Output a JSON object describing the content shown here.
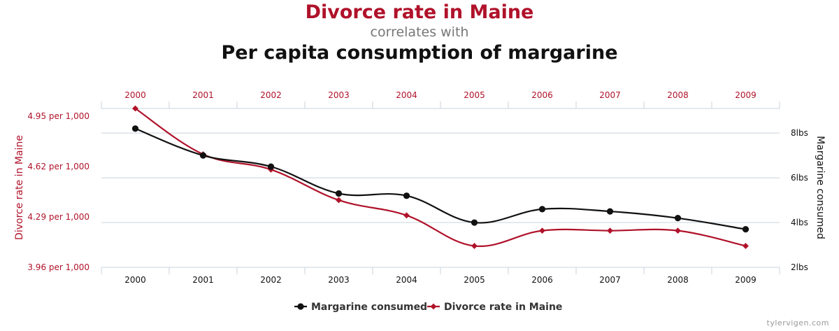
{
  "title": {
    "primary": "Divorce rate in Maine",
    "connector": "correlates with",
    "secondary": "Per capita consumption of margarine"
  },
  "colors": {
    "red": "#b0122a",
    "black": "#111111",
    "grid": "#c9d3dd",
    "connector_text": "#777777"
  },
  "chart_data": {
    "type": "line",
    "categories": [
      "2000",
      "2001",
      "2002",
      "2003",
      "2004",
      "2005",
      "2006",
      "2007",
      "2008",
      "2009"
    ],
    "series": [
      {
        "name": "Margarine consumed",
        "axis": "right",
        "color": "#111111",
        "marker": "circle",
        "values": [
          8.2,
          7.0,
          6.5,
          5.3,
          5.2,
          4.0,
          4.6,
          4.5,
          4.2,
          3.7
        ]
      },
      {
        "name": "Divorce rate in Maine",
        "axis": "left",
        "color": "#b0122a",
        "marker": "diamond",
        "values": [
          5.0,
          4.7,
          4.6,
          4.4,
          4.3,
          4.1,
          4.2,
          4.2,
          4.2,
          4.1
        ]
      }
    ],
    "left_axis": {
      "label": "Divorce rate in Maine",
      "ticks": [
        "4.95 per 1,000",
        "4.62 per 1,000",
        "4.29 per 1,000",
        "3.96 per 1,000"
      ],
      "tick_values": [
        4.95,
        4.62,
        4.29,
        3.96
      ],
      "range": [
        3.96,
        5.0
      ]
    },
    "right_axis": {
      "label": "Margarine consumed",
      "ticks": [
        "8lbs",
        "6lbs",
        "4lbs",
        "2lbs"
      ],
      "tick_values": [
        8,
        6,
        4,
        2
      ],
      "range": [
        2,
        9.1
      ]
    },
    "legend": {
      "position": "bottom-center",
      "items": [
        "Margarine consumed",
        "Divorce rate in Maine"
      ]
    },
    "grid": true,
    "smooth": true
  },
  "watermark": "tylervigen.com"
}
